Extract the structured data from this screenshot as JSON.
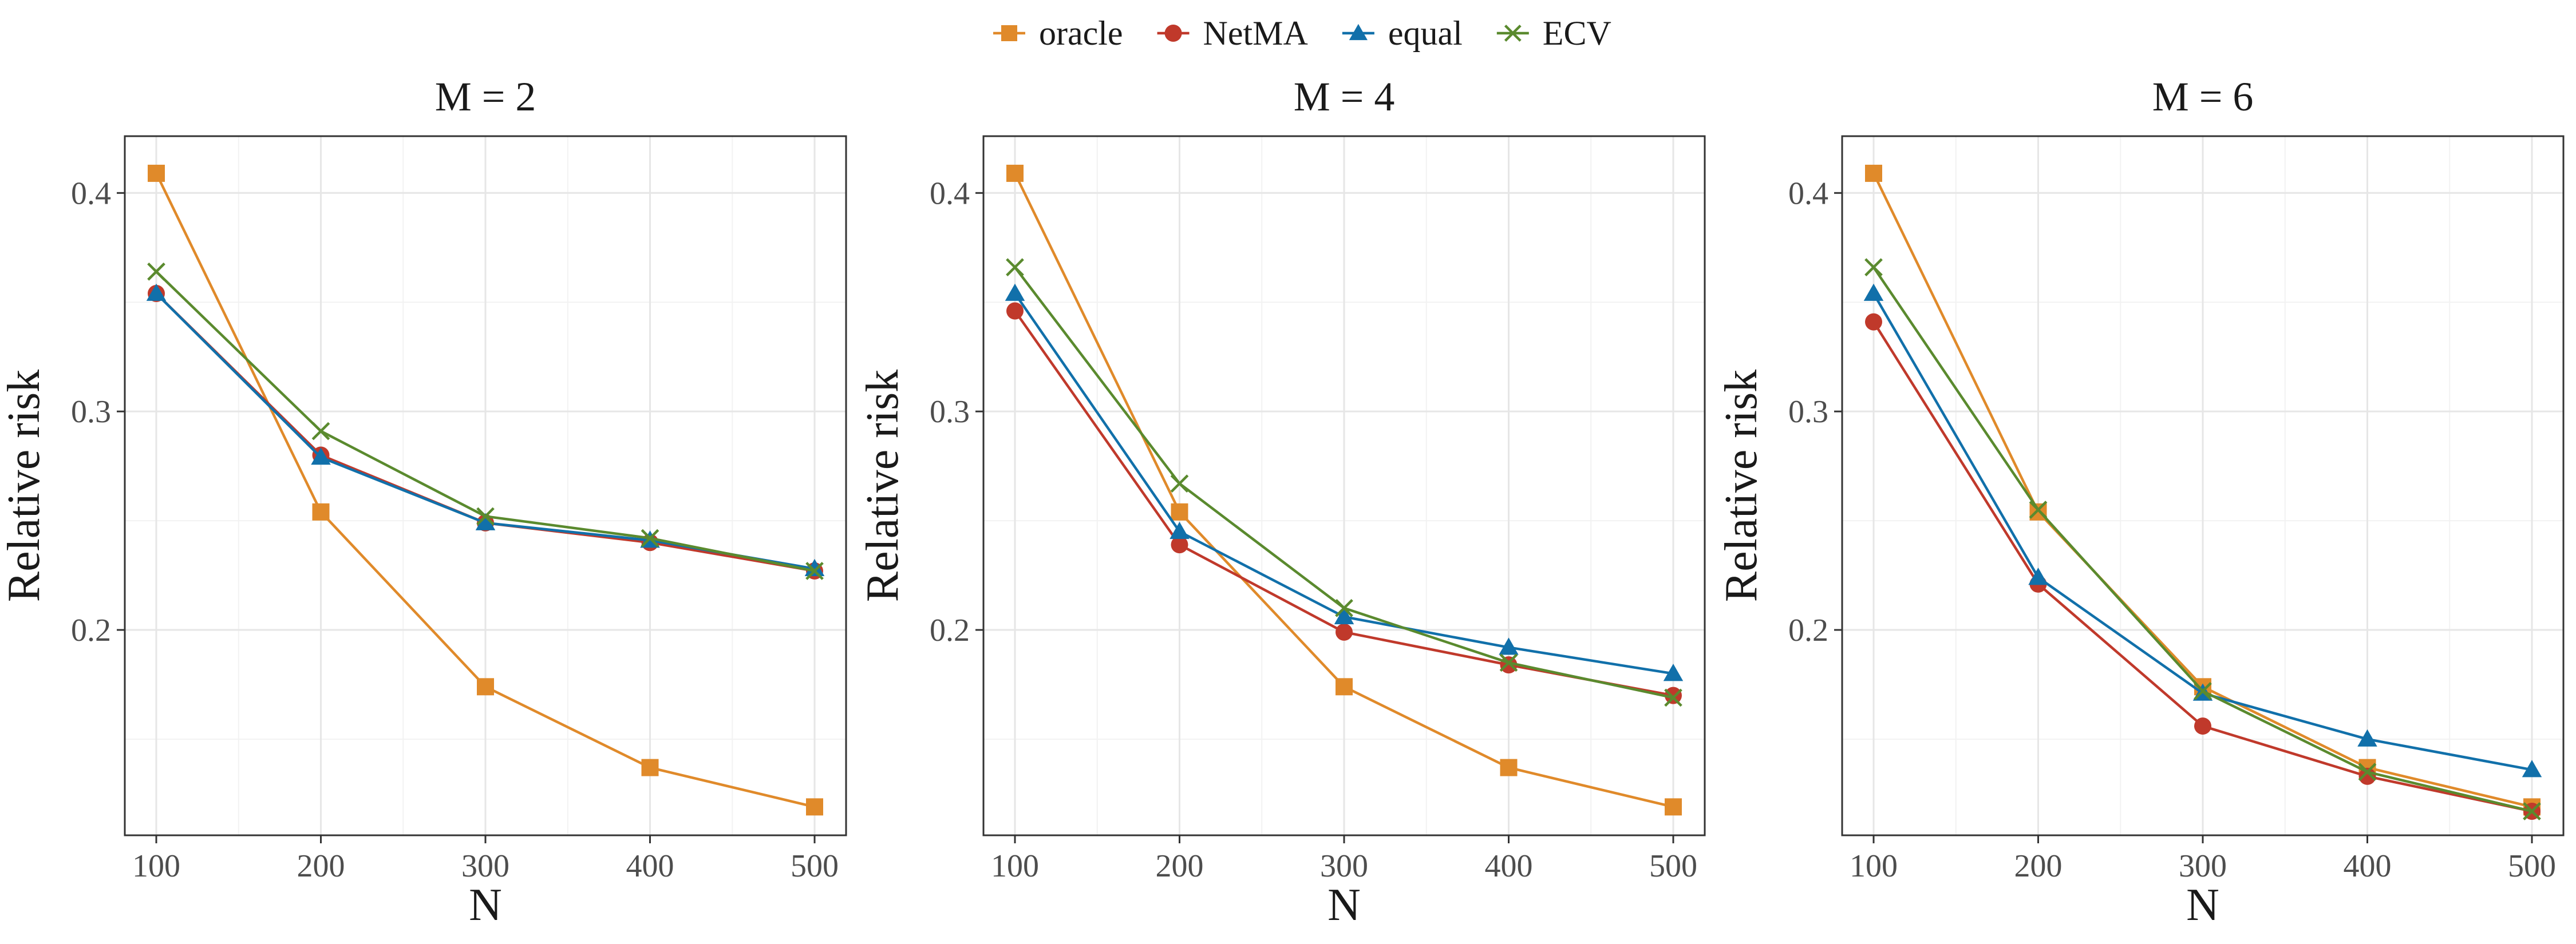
{
  "legend": {
    "items": [
      {
        "label": "oracle",
        "color": "#E08A2A",
        "marker": "square"
      },
      {
        "label": "NetMA",
        "color": "#C0392B",
        "marker": "circle"
      },
      {
        "label": "equal",
        "color": "#1170AA",
        "marker": "triangle"
      },
      {
        "label": "ECV",
        "color": "#5A8A2E",
        "marker": "cross"
      }
    ]
  },
  "chart_data": [
    {
      "type": "line",
      "title": "M = 2",
      "xlabel": "N",
      "ylabel": "Relative risk",
      "x": [
        100,
        200,
        300,
        400,
        500
      ],
      "xticks": [
        "100",
        "200",
        "300",
        "400",
        "500"
      ],
      "yticks": [
        "0.2",
        "0.3",
        "0.4"
      ],
      "ylim": [
        0.106,
        0.426
      ],
      "grid": true,
      "series": [
        {
          "name": "oracle",
          "values": [
            0.409,
            0.254,
            0.174,
            0.137,
            0.119
          ]
        },
        {
          "name": "NetMA",
          "values": [
            0.354,
            0.28,
            0.249,
            0.24,
            0.227
          ]
        },
        {
          "name": "equal",
          "values": [
            0.354,
            0.279,
            0.249,
            0.241,
            0.228
          ]
        },
        {
          "name": "ECV",
          "values": [
            0.364,
            0.291,
            0.252,
            0.242,
            0.227
          ]
        }
      ]
    },
    {
      "type": "line",
      "title": "M = 4",
      "xlabel": "N",
      "ylabel": "Relative risk",
      "x": [
        100,
        200,
        300,
        400,
        500
      ],
      "xticks": [
        "100",
        "200",
        "300",
        "400",
        "500"
      ],
      "yticks": [
        "0.2",
        "0.3",
        "0.4"
      ],
      "ylim": [
        0.106,
        0.426
      ],
      "grid": true,
      "series": [
        {
          "name": "oracle",
          "values": [
            0.409,
            0.254,
            0.174,
            0.137,
            0.119
          ]
        },
        {
          "name": "NetMA",
          "values": [
            0.346,
            0.239,
            0.199,
            0.184,
            0.17
          ]
        },
        {
          "name": "equal",
          "values": [
            0.354,
            0.245,
            0.206,
            0.192,
            0.18
          ]
        },
        {
          "name": "ECV",
          "values": [
            0.366,
            0.267,
            0.21,
            0.185,
            0.169
          ]
        }
      ]
    },
    {
      "type": "line",
      "title": "M = 6",
      "xlabel": "N",
      "ylabel": "Relative risk",
      "x": [
        100,
        200,
        300,
        400,
        500
      ],
      "xticks": [
        "100",
        "200",
        "300",
        "400",
        "500"
      ],
      "yticks": [
        "0.2",
        "0.3",
        "0.4"
      ],
      "ylim": [
        0.106,
        0.426
      ],
      "grid": true,
      "series": [
        {
          "name": "oracle",
          "values": [
            0.409,
            0.254,
            0.174,
            0.137,
            0.119
          ]
        },
        {
          "name": "NetMA",
          "values": [
            0.341,
            0.221,
            0.156,
            0.133,
            0.117
          ]
        },
        {
          "name": "equal",
          "values": [
            0.354,
            0.224,
            0.171,
            0.15,
            0.136
          ]
        },
        {
          "name": "ECV",
          "values": [
            0.366,
            0.255,
            0.172,
            0.135,
            0.117
          ]
        }
      ]
    }
  ]
}
